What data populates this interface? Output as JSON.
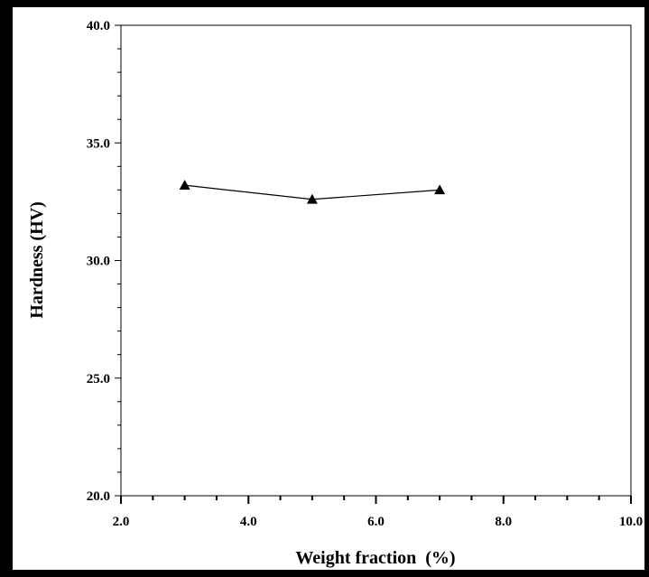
{
  "chart_data": {
    "type": "line",
    "title": "",
    "xlabel": "Weight fraction  (%)",
    "ylabel": "Hardness (HV)",
    "xlim": [
      2.0,
      10.0
    ],
    "ylim": [
      20.0,
      40.0
    ],
    "x_ticks": [
      "2.0",
      "4.0",
      "6.0",
      "8.0",
      "10.0"
    ],
    "y_ticks": [
      "20.0",
      "25.0",
      "30.0",
      "35.0",
      "40.0"
    ],
    "grid": false,
    "legend": "none",
    "series": [
      {
        "marker": "triangle",
        "color": "#000000",
        "x": [
          3.0,
          5.0,
          7.0
        ],
        "y": [
          33.2,
          32.6,
          33.0
        ]
      }
    ]
  }
}
